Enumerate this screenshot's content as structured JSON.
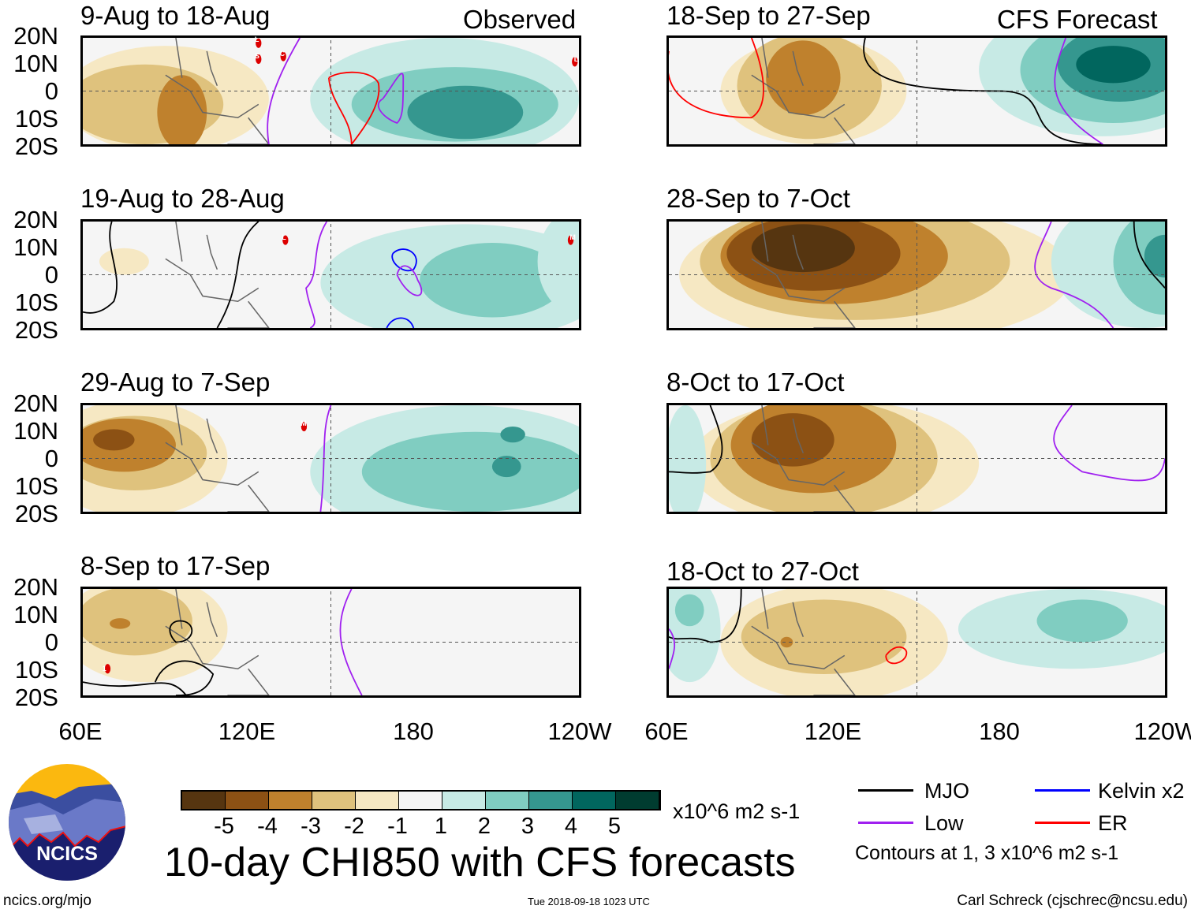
{
  "title": "10-day CHI850 with CFS forecasts",
  "footer": {
    "left": "ncics.org/mjo",
    "center": "Tue 2018-09-18 1023 UTC",
    "right": "Carl Schreck (cjschrec@ncsu.edu)"
  },
  "logo_text": "NCICS",
  "column_labels": {
    "left": "Observed",
    "right": "CFS Forecast"
  },
  "chart_data": {
    "type": "heatmap",
    "variable": "10-day CHI850",
    "units": "x10^6 m2 s-1",
    "lat_ticks": [
      "20N",
      "10N",
      "0",
      "10S",
      "20S"
    ],
    "lon_ticks": [
      "60E",
      "120E",
      "180",
      "120W"
    ],
    "panels": [
      {
        "title": "9-Aug to 18-Aug",
        "source": "Observed",
        "storms": [
          "L",
          "S",
          "C",
          "L"
        ]
      },
      {
        "title": "19-Aug to 28-Aug",
        "source": "Observed",
        "storms": [
          "L",
          "M"
        ]
      },
      {
        "title": "29-Aug to 7-Sep",
        "source": "Observed",
        "storms": [
          "M"
        ]
      },
      {
        "title": "8-Sep to 17-Sep",
        "source": "Observed",
        "storms": [
          "1"
        ]
      },
      {
        "title": "18-Sep to 27-Sep",
        "source": "CFS Forecast"
      },
      {
        "title": "28-Sep to 7-Oct",
        "source": "CFS Forecast"
      },
      {
        "title": "8-Oct to 17-Oct",
        "source": "CFS Forecast"
      },
      {
        "title": "18-Oct to 27-Oct",
        "source": "CFS Forecast"
      }
    ],
    "colorbar": {
      "levels": [
        "-5",
        "-4",
        "-3",
        "-2",
        "-1",
        "1",
        "2",
        "3",
        "4",
        "5"
      ],
      "colors": [
        "#563510",
        "#8c5114",
        "#bf812d",
        "#dfc27d",
        "#f6e8c3",
        "#f5f5f5",
        "#c7eae5",
        "#80cdc1",
        "#35978f",
        "#01665e",
        "#003c30"
      ],
      "units": "x10^6 m2 s-1"
    },
    "legend": [
      {
        "label": "MJO",
        "color": "#000000"
      },
      {
        "label": "Kelvin x2",
        "color": "#0000ff"
      },
      {
        "label": "Low",
        "color": "#a020f0"
      },
      {
        "label": "ER",
        "color": "#ff0000"
      }
    ],
    "contour_note": "Contours at 1, 3 x10^6 m2 s-1"
  }
}
